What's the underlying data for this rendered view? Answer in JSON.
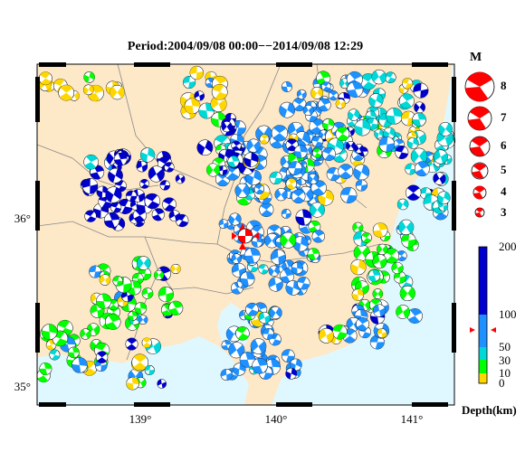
{
  "title": "Period:2004/09/08 00:00−−2014/09/08 12:29",
  "lon_ticks": [
    "139°",
    "140°",
    "141°"
  ],
  "lat_ticks": [
    "36°",
    "35°"
  ],
  "magnitude_legend": {
    "header": "M",
    "levels": [
      "8",
      "7",
      "6",
      "5",
      "4",
      "3"
    ],
    "color": "#ff0000"
  },
  "depth_legend": {
    "ticks": [
      "200",
      "100",
      "50",
      "30",
      "10",
      "0"
    ],
    "unit": "Depth(km)",
    "colors": {
      "0-10": "#ffd700",
      "10-30": "#00ff00",
      "30-50": "#00d7d7",
      "50-100": "#1e90ff",
      "100-200": "#0000cd"
    }
  },
  "map_colors": {
    "land": "#fde8c8",
    "sea": "#dff8ff",
    "boundary": "#888888",
    "frame": "#000000"
  },
  "station_marker": {
    "symbol": "red-triangle",
    "color": "#ff0000"
  }
}
